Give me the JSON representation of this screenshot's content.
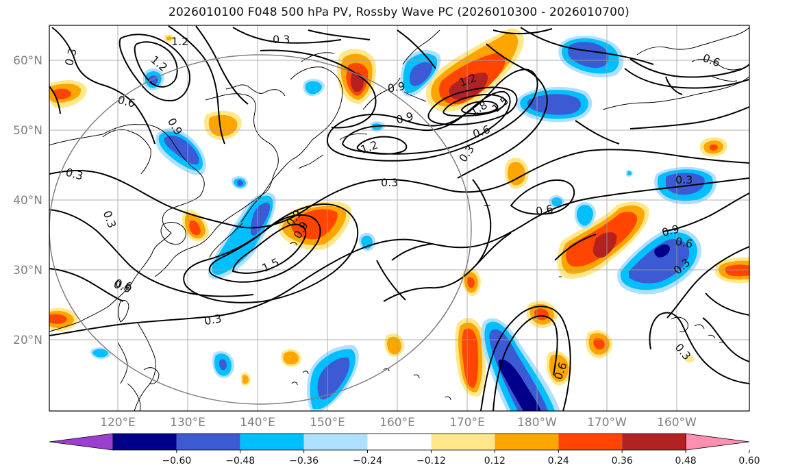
{
  "title": "2026010100 F048 500 hPa PV, Rossby Wave PC (2026010300 - 2026010700)",
  "lat_labels": [
    "60°N",
    "50°N",
    "40°N",
    "30°N",
    "20°N"
  ],
  "lon_labels": [
    "120°E",
    "130°E",
    "140°E",
    "150°E",
    "160°E",
    "170°E",
    "180°W",
    "170°W",
    "160°W"
  ],
  "colorbar": {
    "colors": [
      "#9a3fd0",
      "#00008b",
      "#3b5ad3",
      "#00bfff",
      "#b0e0ff",
      "#ffffff",
      "#ffe88a",
      "#ffa500",
      "#ff4500",
      "#b22222",
      "#ff8fb0"
    ],
    "tick_labels": [
      "−0.60",
      "−0.48",
      "−0.36",
      "−0.24",
      "−0.12",
      "0.12",
      "0.24",
      "0.36",
      "0.48",
      "0.60"
    ]
  },
  "contour_labels": [
    "1.2",
    "0.3",
    "1.2",
    "0.3",
    "0.3",
    "0.6",
    "0.9",
    "0.6",
    "0.3",
    "0.9",
    "0.9",
    "1.2",
    "1.2",
    "1.8",
    "1.5",
    "0.6",
    "0.3",
    "0.3",
    "0.6",
    "0.9",
    "0.9",
    "1.5",
    "0.6",
    "0.3",
    "0.3",
    "0.9",
    "0.6",
    "0.3",
    "0.6",
    "0.3",
    "0.6"
  ]
}
